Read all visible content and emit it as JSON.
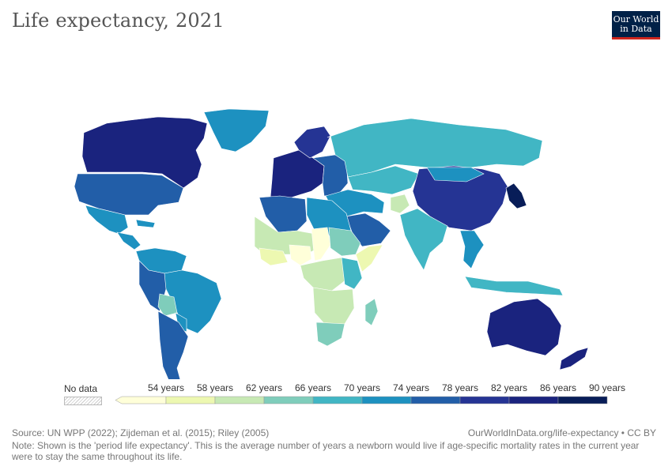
{
  "header": {
    "title": "Life expectancy, 2021",
    "logo_line1": "Our World",
    "logo_line2": "in Data"
  },
  "legend": {
    "no_data_label": "No data",
    "bins": [
      {
        "label": "",
        "color": "#ffffd9"
      },
      {
        "label": "54 years",
        "color": "#edf8b1"
      },
      {
        "label": "58 years",
        "color": "#c7e9b4"
      },
      {
        "label": "62 years",
        "color": "#7fcdbb"
      },
      {
        "label": "66 years",
        "color": "#41b6c4"
      },
      {
        "label": "70 years",
        "color": "#1d91c0"
      },
      {
        "label": "74 years",
        "color": "#225ea8"
      },
      {
        "label": "78 years",
        "color": "#253494"
      },
      {
        "label": "82 years",
        "color": "#1a237e"
      },
      {
        "label": "86 years",
        "color": "#081d58"
      },
      {
        "label": "90 years",
        "color": ""
      }
    ]
  },
  "chart_data": {
    "type": "choropleth",
    "title": "Life expectancy, 2021",
    "unit": "years",
    "scale_breaks": [
      54,
      58,
      62,
      66,
      70,
      74,
      78,
      82,
      86,
      90
    ],
    "regions": [
      {
        "name": "Canada",
        "color": "#1a237e"
      },
      {
        "name": "Greenland",
        "color": "#1d91c0"
      },
      {
        "name": "United States",
        "color": "#225ea8"
      },
      {
        "name": "Mexico",
        "color": "#1d91c0"
      },
      {
        "name": "Central America",
        "color": "#1d91c0"
      },
      {
        "name": "Caribbean",
        "color": "#1d91c0"
      },
      {
        "name": "Colombia / Venezuela",
        "color": "#1d91c0"
      },
      {
        "name": "Brazil",
        "color": "#1d91c0"
      },
      {
        "name": "Peru",
        "color": "#225ea8"
      },
      {
        "name": "Bolivia",
        "color": "#7fcdbb"
      },
      {
        "name": "Paraguay",
        "color": "#1d91c0"
      },
      {
        "name": "Argentina / Chile",
        "color": "#225ea8"
      },
      {
        "name": "Western Europe",
        "color": "#1a237e"
      },
      {
        "name": "Nordic countries",
        "color": "#253494"
      },
      {
        "name": "Eastern Europe",
        "color": "#225ea8"
      },
      {
        "name": "Russia",
        "color": "#41b6c4"
      },
      {
        "name": "Central Asia",
        "color": "#41b6c4"
      },
      {
        "name": "Middle East",
        "color": "#1d91c0"
      },
      {
        "name": "Saudi Arabia",
        "color": "#225ea8"
      },
      {
        "name": "Afghanistan",
        "color": "#c7e9b4"
      },
      {
        "name": "China",
        "color": "#253494"
      },
      {
        "name": "Mongolia",
        "color": "#1d91c0"
      },
      {
        "name": "Japan / Korea",
        "color": "#081d58"
      },
      {
        "name": "India",
        "color": "#41b6c4"
      },
      {
        "name": "Southeast Asia",
        "color": "#1d91c0"
      },
      {
        "name": "Indonesia",
        "color": "#41b6c4"
      },
      {
        "name": "Australia",
        "color": "#1a237e"
      },
      {
        "name": "New Zealand",
        "color": "#1a237e"
      },
      {
        "name": "North Africa",
        "color": "#1d91c0"
      },
      {
        "name": "Algeria / Morocco",
        "color": "#225ea8"
      },
      {
        "name": "Sahel",
        "color": "#c7e9b4"
      },
      {
        "name": "Chad / Central African Republic",
        "color": "#ffffd9"
      },
      {
        "name": "Nigeria",
        "color": "#ffffd9"
      },
      {
        "name": "West Africa coast",
        "color": "#edf8b1"
      },
      {
        "name": "Sudan / Ethiopia",
        "color": "#7fcdbb"
      },
      {
        "name": "Somalia",
        "color": "#edf8b1"
      },
      {
        "name": "Central Africa",
        "color": "#c7e9b4"
      },
      {
        "name": "East Africa",
        "color": "#41b6c4"
      },
      {
        "name": "Southern Africa",
        "color": "#c7e9b4"
      },
      {
        "name": "South Africa",
        "color": "#7fcdbb"
      },
      {
        "name": "Madagascar",
        "color": "#7fcdbb"
      }
    ]
  },
  "footer": {
    "source": "Source: UN WPP (2022); Zijdeman et al. (2015); Riley (2005)",
    "credit": "OurWorldInData.org/life-expectancy • CC BY",
    "note": "Note: Shown is the 'period life expectancy'. This is the average number of years a newborn would live if age-specific mortality rates in the current year were to stay the same throughout its life."
  }
}
